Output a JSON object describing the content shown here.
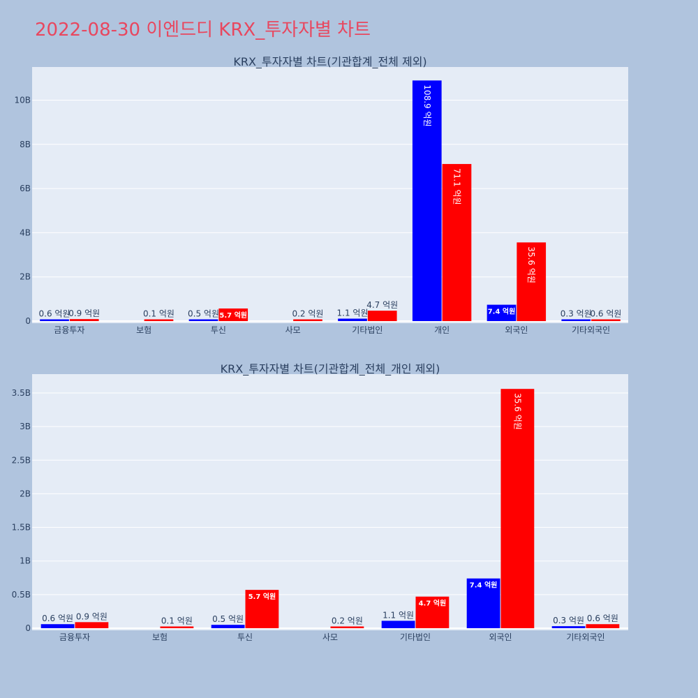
{
  "page": {
    "title": "2022-08-30 이엔드디 KRX_투자자별 차트",
    "background": "#b0c4de",
    "title_color": "#e8475f",
    "plot_background": "#e5ecf6"
  },
  "chart_data": [
    {
      "type": "bar",
      "title": "KRX_투자자별 차트(기관합계_전체 제외)",
      "categories": [
        "금융투자",
        "보험",
        "투신",
        "사모",
        "기타법인",
        "개인",
        "외국인",
        "기타외국인"
      ],
      "series": [
        {
          "color": "#0000ff",
          "values": [
            0.06,
            0.0,
            0.05,
            0.0,
            0.11,
            10.89,
            0.74,
            0.03
          ],
          "labels": [
            "0.6 억원",
            "",
            "0.5 억원",
            "",
            "1.1 억원",
            "108.9 억원",
            "7.4 억원",
            "0.3 억원"
          ]
        },
        {
          "color": "#ff0000",
          "values": [
            0.09,
            0.01,
            0.57,
            0.02,
            0.47,
            7.11,
            3.56,
            0.06
          ],
          "labels": [
            "0.9 억원",
            "0.1 억원",
            "5.7 억원",
            "0.2 억원",
            "4.7 억원",
            "71.1 억원",
            "35.6 억원",
            "0.6 억원"
          ]
        }
      ],
      "yticks": [
        0,
        2,
        4,
        6,
        8,
        10
      ],
      "ytick_labels": [
        "0",
        "2B",
        "4B",
        "6B",
        "8B",
        "10B"
      ],
      "ylim": [
        0,
        11.5
      ],
      "grid": true,
      "legend": "none"
    },
    {
      "type": "bar",
      "title": "KRX_투자자별 차트(기관합계_전체_개인 제외)",
      "categories": [
        "금융투자",
        "보험",
        "투신",
        "사모",
        "기타법인",
        "외국인",
        "기타외국인"
      ],
      "series": [
        {
          "color": "#0000ff",
          "values": [
            0.06,
            0.0,
            0.05,
            0.0,
            0.11,
            0.74,
            0.03
          ],
          "labels": [
            "0.6 억원",
            "",
            "0.5 억원",
            "",
            "1.1 억원",
            "7.4 억원",
            "0.3 억원"
          ]
        },
        {
          "color": "#ff0000",
          "values": [
            0.09,
            0.01,
            0.57,
            0.02,
            0.47,
            3.56,
            0.06
          ],
          "labels": [
            "0.9 억원",
            "0.1 억원",
            "5.7 억원",
            "0.2 억원",
            "4.7 억원",
            "35.6 억원",
            "0.6 억원"
          ]
        }
      ],
      "yticks": [
        0,
        0.5,
        1,
        1.5,
        2,
        2.5,
        3,
        3.5
      ],
      "ytick_labels": [
        "0",
        "0.5B",
        "1B",
        "1.5B",
        "2B",
        "2.5B",
        "3B",
        "3.5B"
      ],
      "ylim": [
        0,
        3.78
      ],
      "grid": true,
      "legend": "none"
    }
  ]
}
